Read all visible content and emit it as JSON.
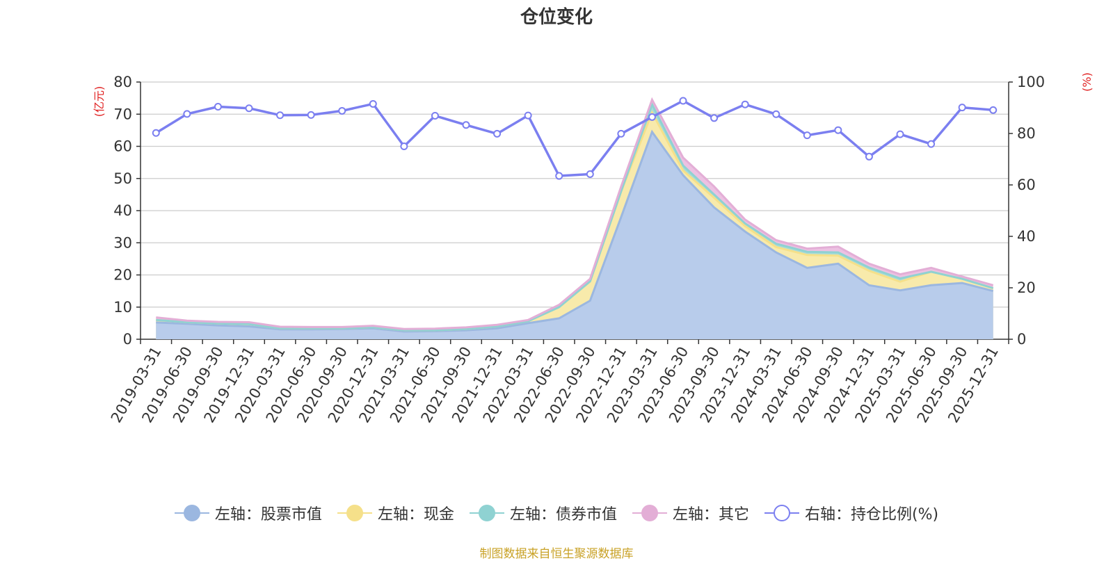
{
  "title": "仓位变化",
  "source_note": "制图数据来自恒生聚源数据库",
  "chart_data": {
    "type": "area",
    "stacked": true,
    "categories": [
      "2019-03-31",
      "2019-06-30",
      "2019-09-30",
      "2019-12-31",
      "2020-03-31",
      "2020-06-30",
      "2020-09-30",
      "2020-12-31",
      "2021-03-31",
      "2021-06-30",
      "2021-09-30",
      "2021-12-31",
      "2022-03-31",
      "2022-06-30",
      "2022-09-30",
      "2022-12-31",
      "2023-03-31",
      "2023-06-30",
      "2023-09-30",
      "2023-12-31",
      "2024-03-31",
      "2024-06-30",
      "2024-09-30",
      "2024-12-31",
      "2025-03-31",
      "2025-06-30",
      "2025-09-30",
      "2025-12-31"
    ],
    "left_axis": {
      "unit": "(亿元)",
      "ylim": [
        0,
        80
      ],
      "ticks": [
        0,
        10,
        20,
        30,
        40,
        50,
        60,
        70,
        80
      ]
    },
    "right_axis": {
      "unit": "(%)",
      "ylim": [
        0,
        100
      ],
      "ticks": [
        0,
        20,
        40,
        60,
        80,
        100
      ]
    },
    "series": [
      {
        "name": "左轴：股票市值",
        "axis": "left",
        "type": "area",
        "color": "#9bb7e0",
        "fill": "#b8cceb",
        "values": [
          5.2,
          4.8,
          4.3,
          4.0,
          3.1,
          3.1,
          3.2,
          3.4,
          2.4,
          2.5,
          2.8,
          3.4,
          5.0,
          6.5,
          12.0,
          38.0,
          64.5,
          51.0,
          41.0,
          33.5,
          27.0,
          22.2,
          23.5,
          16.8,
          15.2,
          16.8,
          17.5,
          15.0
        ]
      },
      {
        "name": "左轴：现金",
        "axis": "left",
        "type": "area",
        "color": "#f5e08a",
        "fill": "#f8eaab",
        "values": [
          0.8,
          0.5,
          0.6,
          0.7,
          0.3,
          0.3,
          0.2,
          0.3,
          0.4,
          0.3,
          0.4,
          0.6,
          0.6,
          3.5,
          6.0,
          8.0,
          6.0,
          1.5,
          3.0,
          1.7,
          1.7,
          4.0,
          2.5,
          4.5,
          2.7,
          4.2,
          1.3,
          0.9
        ]
      },
      {
        "name": "左轴：债券市值",
        "axis": "left",
        "type": "area",
        "color": "#8fd2d2",
        "fill": "#a8dcd9",
        "values": [
          0.0,
          0.0,
          0.0,
          0.0,
          0.0,
          0.0,
          0.0,
          0.0,
          0.0,
          0.0,
          0.0,
          0.0,
          0.0,
          0.0,
          0.0,
          0.0,
          2.5,
          1.5,
          1.0,
          0.8,
          1.0,
          1.0,
          1.0,
          1.0,
          1.0,
          0.0,
          0.0,
          0.0
        ]
      },
      {
        "name": "左轴：其它",
        "axis": "left",
        "type": "area",
        "color": "#e3aed6",
        "fill": "#ecc1e2",
        "values": [
          0.8,
          0.5,
          0.5,
          0.6,
          0.5,
          0.4,
          0.4,
          0.5,
          0.4,
          0.5,
          0.5,
          0.5,
          0.4,
          0.7,
          0.8,
          1.5,
          1.5,
          2.5,
          2.5,
          1.2,
          1.1,
          1.0,
          1.8,
          1.2,
          1.3,
          1.2,
          0.7,
          0.9
        ]
      },
      {
        "name": "右轴：持仓比例(%)",
        "axis": "right",
        "type": "line",
        "color": "#7b7ff0",
        "values": [
          80.2,
          87.6,
          90.4,
          89.8,
          87.1,
          87.2,
          88.8,
          91.5,
          75.0,
          86.9,
          83.3,
          79.9,
          87.0,
          63.5,
          64.2,
          79.9,
          86.4,
          92.7,
          86.0,
          91.3,
          87.5,
          79.3,
          81.3,
          71.0,
          79.7,
          75.9,
          90.1,
          89.1
        ]
      }
    ]
  }
}
